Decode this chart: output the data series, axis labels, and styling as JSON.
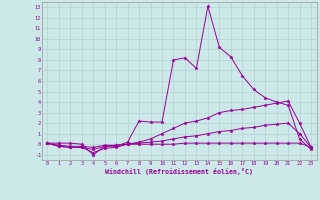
{
  "xlabel": "Windchill (Refroidissement éolien,°C)",
  "bg_color": "#cce8e8",
  "grid_color": "#aacccc",
  "line_color": "#990099",
  "xlim": [
    -0.5,
    23.5
  ],
  "ylim": [
    -1.5,
    13.5
  ],
  "xticks": [
    0,
    1,
    2,
    3,
    4,
    5,
    6,
    7,
    8,
    9,
    10,
    11,
    12,
    13,
    14,
    15,
    16,
    17,
    18,
    19,
    20,
    21,
    22,
    23
  ],
  "yticks": [
    -1,
    0,
    1,
    2,
    3,
    4,
    5,
    6,
    7,
    8,
    9,
    10,
    11,
    12,
    13
  ],
  "series": [
    [
      0.1,
      0.1,
      0.1,
      0.0,
      -1.0,
      -0.2,
      -0.2,
      0.2,
      2.2,
      2.1,
      2.1,
      8.0,
      8.2,
      7.2,
      13.1,
      9.2,
      8.3,
      6.5,
      5.2,
      4.4,
      4.0,
      3.7,
      0.5,
      -0.5
    ],
    [
      0.1,
      -0.2,
      -0.3,
      -0.3,
      -0.8,
      -0.4,
      -0.3,
      0.0,
      0.2,
      0.5,
      1.0,
      1.5,
      2.0,
      2.2,
      2.5,
      3.0,
      3.2,
      3.3,
      3.5,
      3.7,
      3.9,
      4.1,
      2.0,
      -0.3
    ],
    [
      0.1,
      -0.2,
      -0.3,
      -0.3,
      -0.5,
      -0.2,
      -0.1,
      0.0,
      0.1,
      0.2,
      0.3,
      0.5,
      0.7,
      0.8,
      1.0,
      1.2,
      1.3,
      1.5,
      1.6,
      1.8,
      1.9,
      2.0,
      1.0,
      -0.3
    ],
    [
      0.1,
      -0.1,
      -0.2,
      -0.2,
      -0.3,
      -0.1,
      -0.1,
      0.0,
      0.0,
      0.0,
      0.0,
      0.0,
      0.1,
      0.1,
      0.1,
      0.1,
      0.1,
      0.1,
      0.1,
      0.1,
      0.1,
      0.1,
      0.1,
      -0.3
    ]
  ]
}
